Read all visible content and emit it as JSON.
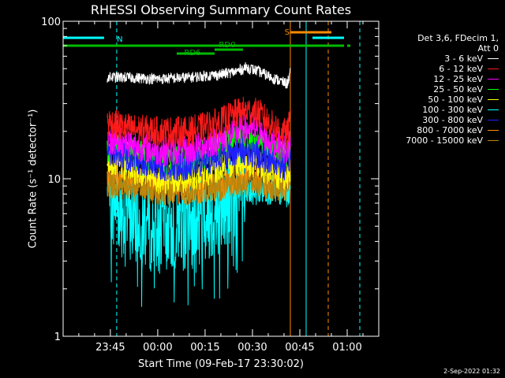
{
  "chart_data": {
    "type": "line",
    "title": "RHESSI Observing Summary Count Rates",
    "xlabel": "Start Time (09-Feb-17 23:30:02)",
    "ylabel": "Count Rate (s⁻¹ detector⁻¹)",
    "y_scale": "log",
    "ylim": [
      1,
      100
    ],
    "y_ticks": [
      "1",
      "10",
      "100"
    ],
    "x_range": [
      "23:30:02",
      "01:10"
    ],
    "x_ticks": [
      "23:45",
      "00:00",
      "00:15",
      "00:30",
      "00:45",
      "01:00"
    ],
    "data_interval": [
      "23:44",
      "00:42"
    ],
    "legend_header": [
      "Det 3,6, FDecim 1,",
      "Att 0"
    ],
    "legend_position": "right",
    "series": [
      {
        "name": "3 - 6 keV",
        "color": "#ffffff",
        "x": [
          "23:44",
          "23:50",
          "00:00",
          "00:10",
          "00:20",
          "00:25",
          "00:28",
          "00:32",
          "00:36",
          "00:41",
          "00:42"
        ],
        "values": [
          44,
          44,
          43,
          44,
          46,
          48,
          51,
          48,
          44,
          40,
          48
        ]
      },
      {
        "name": "6 - 12 keV",
        "color": "#ff1a1a",
        "x": [
          "23:44",
          "23:50",
          "00:00",
          "00:10",
          "00:20",
          "00:25",
          "00:28",
          "00:32",
          "00:36",
          "00:41",
          "00:42"
        ],
        "values": [
          23,
          21,
          20,
          20,
          23,
          26,
          27,
          26,
          22,
          19,
          24
        ]
      },
      {
        "name": "12 - 25 keV",
        "color": "#ff00ff",
        "x": [
          "23:44",
          "23:50",
          "00:00",
          "00:10",
          "00:20",
          "00:25",
          "00:28",
          "00:32",
          "00:36",
          "00:41",
          "00:42"
        ],
        "values": [
          18,
          17,
          15,
          15,
          18,
          20,
          21,
          20,
          17,
          15,
          18
        ]
      },
      {
        "name": "25 - 50 keV",
        "color": "#00ff00",
        "x": [
          "23:44",
          "23:50",
          "00:00",
          "00:10",
          "00:20",
          "00:25",
          "00:28",
          "00:32",
          "00:36",
          "00:41",
          "00:42"
        ],
        "values": [
          16,
          15,
          13,
          13,
          16,
          18,
          18,
          17,
          15,
          14,
          16
        ]
      },
      {
        "name": "50 - 100 keV",
        "color": "#ffff00",
        "x": [
          "23:44",
          "23:50",
          "00:00",
          "00:10",
          "00:20",
          "00:25",
          "00:28",
          "00:32",
          "00:36",
          "00:41",
          "00:42"
        ],
        "values": [
          13,
          12,
          10,
          10,
          12,
          13,
          13,
          12,
          11,
          10,
          12
        ]
      },
      {
        "name": "100 - 300 keV",
        "color": "#00ffff",
        "x": [
          "23:44",
          "23:50",
          "00:00",
          "00:10",
          "00:20",
          "00:25",
          "00:28",
          "00:32",
          "00:36",
          "00:41",
          "00:42"
        ],
        "values": [
          8.5,
          6.0,
          5.0,
          5.5,
          6.5,
          7.5,
          8.0,
          8.5,
          8.5,
          8.0,
          9.0
        ]
      },
      {
        "name": "300 - 800 keV",
        "color": "#2020ff",
        "x": [
          "23:44",
          "23:50",
          "00:00",
          "00:10",
          "00:20",
          "00:25",
          "00:28",
          "00:32",
          "00:36",
          "00:41",
          "00:42"
        ],
        "values": [
          15,
          14,
          12,
          12,
          14,
          15,
          15,
          14,
          13,
          12,
          14
        ]
      },
      {
        "name": "800 - 7000 keV",
        "color": "#ff8c00",
        "x": [
          "23:44",
          "23:50",
          "00:00",
          "00:10",
          "00:20",
          "00:25",
          "00:28",
          "00:32",
          "00:36",
          "00:41",
          "00:42"
        ],
        "values": [
          11,
          10,
          9,
          8.5,
          9,
          10,
          10.5,
          10,
          9.5,
          9,
          10
        ]
      },
      {
        "name": "7000 - 15000 keV",
        "color": "#b8860b",
        "x": [
          "23:44",
          "23:50",
          "00:00",
          "00:10",
          "00:20",
          "00:25",
          "00:28",
          "00:32",
          "00:36",
          "00:41",
          "00:42"
        ],
        "values": [
          9.5,
          9,
          8.5,
          8.5,
          9,
          9.5,
          9.5,
          9.5,
          9,
          8.5,
          9.5
        ]
      }
    ],
    "flag_bars": [
      {
        "label": "N",
        "color": "#00ffff",
        "segments": [
          [
            "23:30:02",
            "23:43"
          ],
          [
            "00:49",
            "00:59"
          ]
        ]
      },
      {
        "label": "",
        "color": "#00bb00",
        "segments": [
          [
            "23:30:02",
            "00:59"
          ],
          [
            "01:00",
            "01:01"
          ]
        ]
      },
      {
        "label": "RD0",
        "color": "#00bb00",
        "segments": [
          [
            "00:18",
            "00:27"
          ]
        ]
      },
      {
        "label": "RD6",
        "color": "#00bb00",
        "segments": [
          [
            "00:06",
            "00:18"
          ]
        ]
      },
      {
        "label": "S",
        "color": "#ff8c00",
        "segments": [
          [
            "00:42",
            "00:55"
          ]
        ]
      }
    ],
    "vertical_lines": [
      {
        "x": "23:30:02",
        "color": "#00ffff",
        "style": "solid"
      },
      {
        "x": "23:47",
        "color": "#00ffff",
        "style": "dashed"
      },
      {
        "x": "00:42",
        "color": "#ff8c00",
        "style": "solid"
      },
      {
        "x": "00:47",
        "color": "#00ffff",
        "style": "solid"
      },
      {
        "x": "00:54",
        "color": "#ff8c00",
        "style": "dashed"
      },
      {
        "x": "01:04",
        "color": "#00ffff",
        "style": "dashed"
      }
    ]
  },
  "timestamp": "2-Sep-2022 01:32"
}
